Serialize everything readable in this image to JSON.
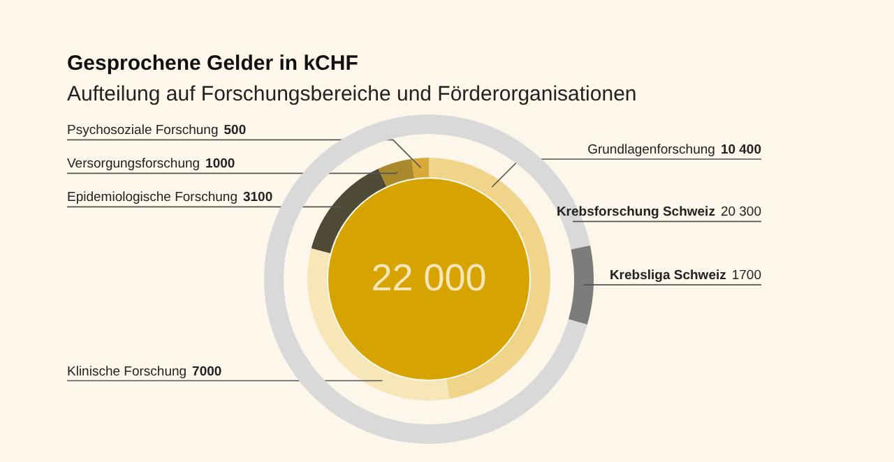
{
  "chart_data": [
    {
      "type": "donut",
      "title": "Gesprochene Gelder in kCHF",
      "subtitle": "Aufteilung auf Forschungsbereiche und Förderorganisationen",
      "categories": [
        "Grundlagenforschung",
        "Klinische Forschung",
        "Epidemiologische Forschung",
        "Versorgungsforschung",
        "Psychosoziale Forschung"
      ],
      "values": [
        10400,
        7000,
        3100,
        1000,
        500
      ],
      "value_labels": [
        "10 400",
        "7000",
        "3100",
        "1000",
        "500"
      ],
      "colors": [
        "#efd48a",
        "#f6e6b8",
        "#4f4a35",
        "#a88a2c",
        "#d8aa3a"
      ],
      "annotations": [
        "22 000"
      ]
    },
    {
      "type": "donut",
      "categories": [
        "Krebsforschung Schweiz",
        "Krebsliga Schweiz"
      ],
      "values": [
        20300,
        1700
      ],
      "value_labels": [
        "20 300",
        "1700"
      ],
      "colors": [
        "#d9d9d9",
        "#7c7c7c"
      ]
    }
  ]
}
